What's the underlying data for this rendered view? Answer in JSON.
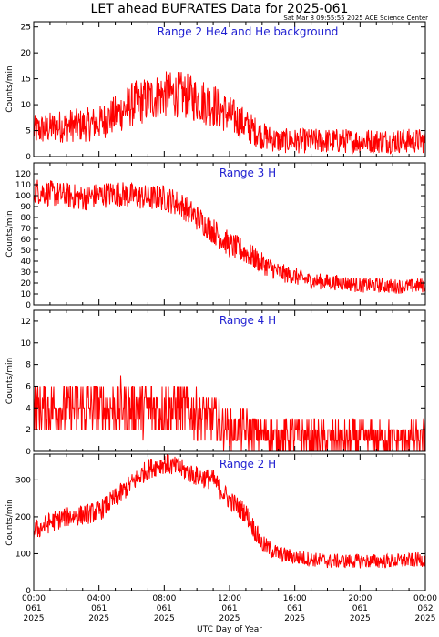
{
  "title": "LET ahead BUFRATES Data for 2025-061",
  "timestamp": "Sat Mar  8 09:55:55 2025 ACE Science Center",
  "xlabel": "UTC Day of Year",
  "colors": {
    "trace": "#ff0000",
    "panel_label": "#1f1fd1",
    "axes": "#000000"
  },
  "chart_data": [
    {
      "type": "line",
      "label": "Range 2 He4 and He background",
      "ylabel": "Counts/min",
      "ylim": [
        0,
        26
      ],
      "yticks": [
        0,
        5,
        10,
        15,
        20,
        25
      ],
      "xlim": [
        0,
        24
      ],
      "x_hours": [
        0,
        1,
        2,
        3,
        4,
        5,
        6,
        7,
        8,
        9,
        10,
        11,
        12,
        13,
        14,
        15,
        16,
        17,
        18,
        19,
        20,
        21,
        22,
        23,
        24
      ],
      "values": [
        5,
        5.5,
        6,
        6,
        6.5,
        8,
        10,
        11,
        12,
        12,
        11,
        10,
        8,
        6,
        4,
        3,
        3,
        3,
        3,
        3,
        3,
        3,
        3,
        3,
        3
      ],
      "noise": 4.5
    },
    {
      "type": "line",
      "label": "Range 3 H",
      "ylabel": "Counts/min",
      "ylim": [
        0,
        130
      ],
      "yticks": [
        0,
        10,
        20,
        30,
        40,
        50,
        60,
        70,
        80,
        90,
        100,
        110,
        120
      ],
      "xlim": [
        0,
        24
      ],
      "x_hours": [
        0,
        1,
        2,
        3,
        4,
        5,
        6,
        7,
        8,
        9,
        10,
        11,
        12,
        13,
        14,
        15,
        16,
        17,
        18,
        19,
        20,
        21,
        22,
        23,
        24
      ],
      "values": [
        105,
        102,
        100,
        98,
        100,
        102,
        100,
        98,
        98,
        92,
        80,
        68,
        55,
        48,
        38,
        30,
        26,
        22,
        21,
        20,
        18,
        18,
        17,
        17,
        18
      ],
      "noise": 12
    },
    {
      "type": "line",
      "label": "Range 4 H",
      "ylabel": "Counts/min",
      "ylim": [
        0,
        13
      ],
      "yticks": [
        0,
        2,
        4,
        6,
        8,
        10,
        12
      ],
      "xlim": [
        0,
        24
      ],
      "x_hours": [
        0,
        1,
        2,
        3,
        4,
        5,
        6,
        7,
        8,
        9,
        10,
        11,
        12,
        13,
        14,
        15,
        16,
        17,
        18,
        19,
        20,
        21,
        22,
        23,
        24
      ],
      "values": [
        4,
        4,
        4,
        4,
        4,
        4,
        4,
        4,
        4,
        4,
        3.5,
        3,
        2,
        2,
        1.5,
        1.5,
        1.5,
        1.2,
        1.2,
        1.2,
        1.2,
        1.2,
        1.2,
        1.2,
        1.2
      ],
      "noise": 3,
      "discrete": true
    },
    {
      "type": "line",
      "label": "Range 2 H",
      "ylabel": "Counts/min",
      "ylim": [
        0,
        370
      ],
      "yticks": [
        0,
        100,
        200,
        300
      ],
      "xlim": [
        0,
        24
      ],
      "x_hours": [
        0,
        1,
        2,
        3,
        4,
        5,
        6,
        7,
        8,
        9,
        10,
        11,
        12,
        13,
        14,
        15,
        16,
        17,
        18,
        19,
        20,
        21,
        22,
        23,
        24
      ],
      "values": [
        160,
        185,
        200,
        205,
        215,
        250,
        290,
        330,
        345,
        330,
        310,
        300,
        245,
        210,
        125,
        100,
        90,
        85,
        80,
        80,
        80,
        80,
        80,
        82,
        85
      ],
      "noise": 28
    }
  ],
  "xticks": [
    {
      "hour": 0,
      "time": "00:00",
      "doy": "061",
      "year": "2025"
    },
    {
      "hour": 4,
      "time": "04:00",
      "doy": "061",
      "year": "2025"
    },
    {
      "hour": 8,
      "time": "08:00",
      "doy": "061",
      "year": "2025"
    },
    {
      "hour": 12,
      "time": "12:00",
      "doy": "061",
      "year": "2025"
    },
    {
      "hour": 16,
      "time": "16:00",
      "doy": "061",
      "year": "2025"
    },
    {
      "hour": 20,
      "time": "20:00",
      "doy": "061",
      "year": "2025"
    },
    {
      "hour": 24,
      "time": "00:00",
      "doy": "062",
      "year": "2025"
    }
  ]
}
